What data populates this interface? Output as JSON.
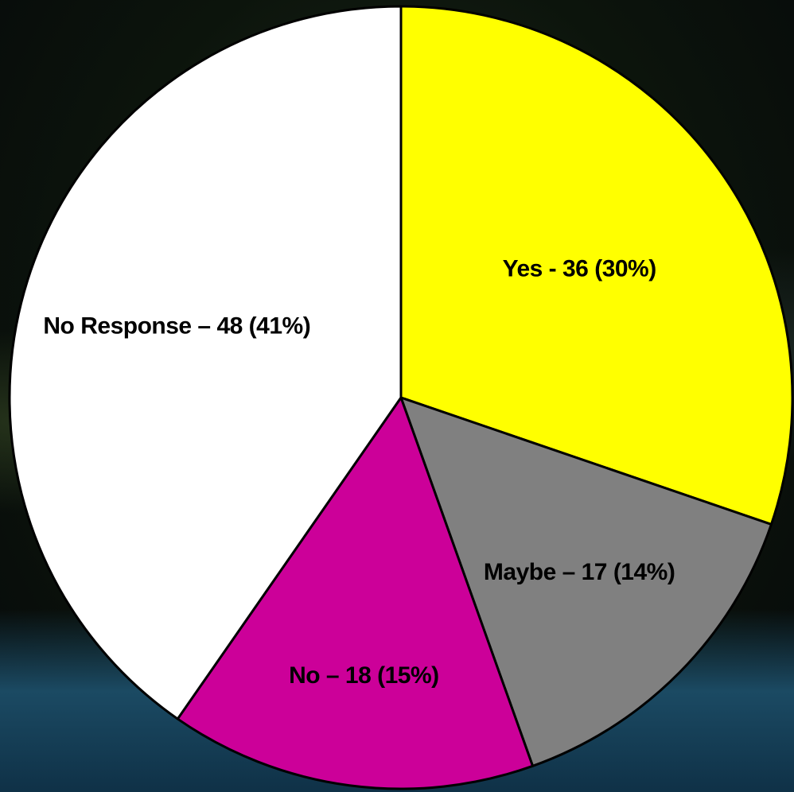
{
  "chart_data": {
    "type": "pie",
    "title": "",
    "slices": [
      {
        "label": "Yes - 36 (30%)",
        "value": 36,
        "percent": 30,
        "color": "#ffff00"
      },
      {
        "label": "Maybe – 17 (14%)",
        "value": 17,
        "percent": 14,
        "color": "#808080"
      },
      {
        "label": "No – 18 (15%)",
        "value": 18,
        "percent": 15,
        "color": "#cc0099"
      },
      {
        "label": "No Response – 48 (41%)",
        "value": 48,
        "percent": 41,
        "color": "#ffffff"
      }
    ]
  }
}
